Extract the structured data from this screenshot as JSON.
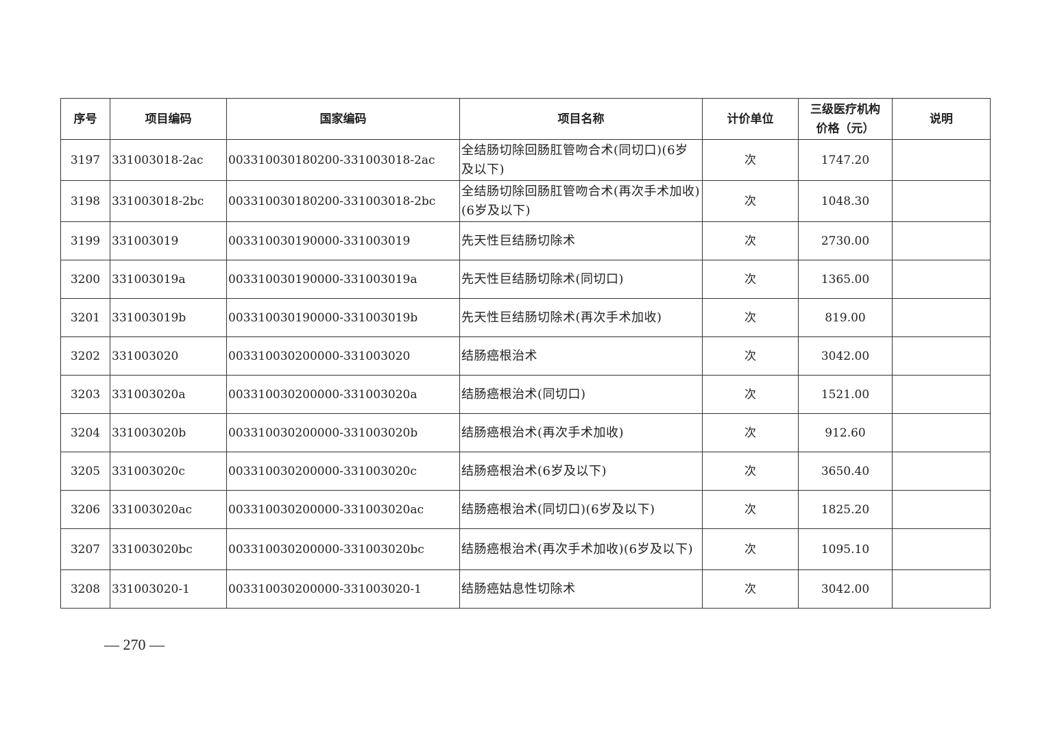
{
  "table": {
    "headers": [
      "序号",
      "项目编码",
      "国家编码",
      "项目名称",
      "计价单位",
      "三级医疗机构价格（元）",
      "说明"
    ],
    "rows": [
      {
        "seq": "3197",
        "code": "331003018-2ac",
        "national": "003310030180200-331003018-2ac",
        "name": "全结肠切除回肠肛管吻合术(同切口)(6岁及以下)",
        "unit": "次",
        "price": "1747.20",
        "note": ""
      },
      {
        "seq": "3198",
        "code": "331003018-2bc",
        "national": "003310030180200-331003018-2bc",
        "name": "全结肠切除回肠肛管吻合术(再次手术加收)(6岁及以下)",
        "unit": "次",
        "price": "1048.30",
        "note": ""
      },
      {
        "seq": "3199",
        "code": "331003019",
        "national": "003310030190000-331003019",
        "name": "先天性巨结肠切除术",
        "unit": "次",
        "price": "2730.00",
        "note": ""
      },
      {
        "seq": "3200",
        "code": "331003019a",
        "national": "003310030190000-331003019a",
        "name": "先天性巨结肠切除术(同切口)",
        "unit": "次",
        "price": "1365.00",
        "note": ""
      },
      {
        "seq": "3201",
        "code": "331003019b",
        "national": "003310030190000-331003019b",
        "name": "先天性巨结肠切除术(再次手术加收)",
        "unit": "次",
        "price": "819.00",
        "note": ""
      },
      {
        "seq": "3202",
        "code": "331003020",
        "national": "003310030200000-331003020",
        "name": "结肠癌根治术",
        "unit": "次",
        "price": "3042.00",
        "note": ""
      },
      {
        "seq": "3203",
        "code": "331003020a",
        "national": "003310030200000-331003020a",
        "name": "结肠癌根治术(同切口)",
        "unit": "次",
        "price": "1521.00",
        "note": ""
      },
      {
        "seq": "3204",
        "code": "331003020b",
        "national": "003310030200000-331003020b",
        "name": "结肠癌根治术(再次手术加收)",
        "unit": "次",
        "price": "912.60",
        "note": ""
      },
      {
        "seq": "3205",
        "code": "331003020c",
        "national": "003310030200000-331003020c",
        "name": "结肠癌根治术(6岁及以下)",
        "unit": "次",
        "price": "3650.40",
        "note": ""
      },
      {
        "seq": "3206",
        "code": "331003020ac",
        "national": "003310030200000-331003020ac",
        "name": "结肠癌根治术(同切口)(6岁及以下)",
        "unit": "次",
        "price": "1825.20",
        "note": ""
      },
      {
        "seq": "3207",
        "code": "331003020bc",
        "national": "003310030200000-331003020bc",
        "name": "结肠癌根治术(再次手术加收)(6岁及以下)",
        "unit": "次",
        "price": "1095.10",
        "note": ""
      },
      {
        "seq": "3208",
        "code": "331003020-1",
        "national": "003310030200000-331003020-1",
        "name": "结肠癌姑息性切除术",
        "unit": "次",
        "price": "3042.00",
        "note": ""
      }
    ]
  },
  "footer": {
    "page_number": "— 270 —"
  }
}
